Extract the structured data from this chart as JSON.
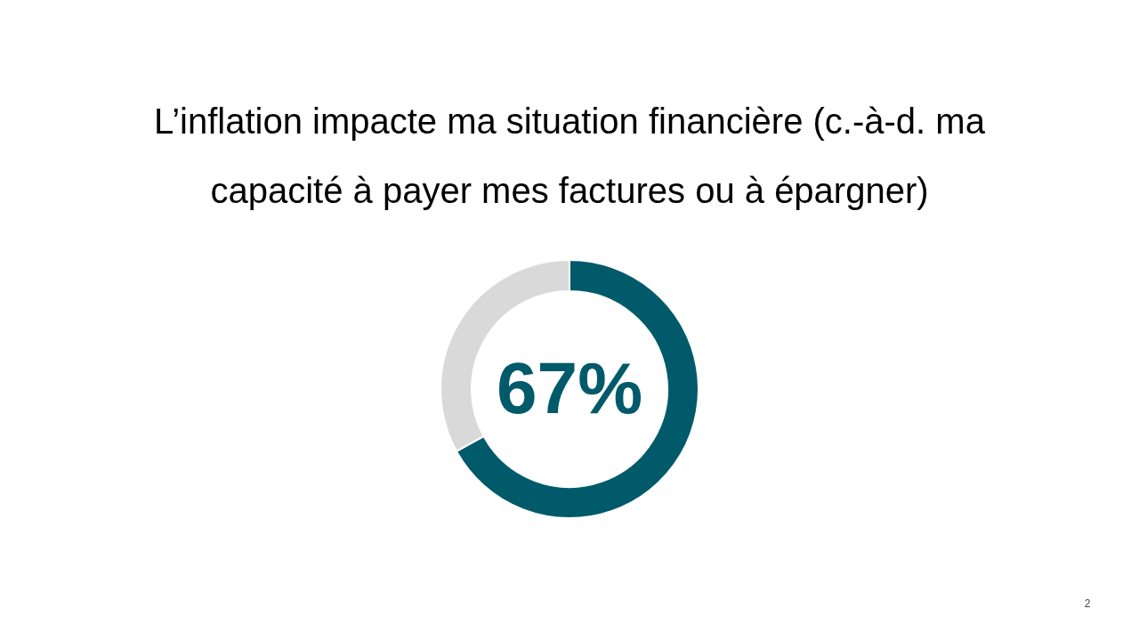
{
  "chart_data": {
    "type": "donut",
    "title": "L’inflation impacte ma situation financière (c.-à-d. ma capacité à payer mes factures ou à épargner)",
    "categories": [
      null,
      null
    ],
    "values": [
      67,
      33
    ],
    "colors": [
      "#005a6a",
      "#d9d9d9"
    ],
    "value_labels": [
      "67%",
      null
    ],
    "annotations": [
      "2"
    ]
  }
}
